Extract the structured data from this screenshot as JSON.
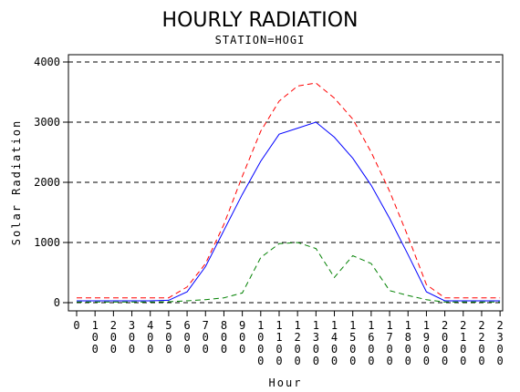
{
  "chart_data": {
    "type": "line",
    "title": "HOURLY RADIATION",
    "subtitle": "STATION=HOGI",
    "xlabel": "Hour",
    "ylabel": "Solar Radiation",
    "x": [
      "0",
      "100",
      "200",
      "300",
      "400",
      "500",
      "600",
      "700",
      "800",
      "900",
      "1000",
      "1100",
      "1200",
      "1300",
      "1400",
      "1500",
      "1600",
      "1700",
      "1800",
      "1900",
      "2000",
      "2100",
      "2200",
      "2300"
    ],
    "ylim": [
      0,
      4000
    ],
    "yticks": [
      "0",
      "1000",
      "2000",
      "3000",
      "4000"
    ],
    "grid": "horizontal dashed",
    "series": [
      {
        "color": "#ff0000",
        "dash": "dashed",
        "values": [
          80,
          80,
          80,
          80,
          80,
          80,
          260,
          650,
          1300,
          2100,
          2850,
          3350,
          3600,
          3650,
          3400,
          3050,
          2500,
          1850,
          1100,
          300,
          80,
          80,
          80,
          80
        ]
      },
      {
        "color": "#0000ff",
        "dash": "solid",
        "values": [
          30,
          30,
          30,
          30,
          30,
          40,
          180,
          600,
          1200,
          1800,
          2350,
          2800,
          2900,
          3000,
          2750,
          2400,
          1950,
          1400,
          800,
          180,
          30,
          30,
          30,
          30
        ]
      },
      {
        "color": "#008000",
        "dash": "dashed",
        "values": [
          10,
          10,
          10,
          10,
          10,
          15,
          30,
          50,
          80,
          160,
          750,
          980,
          1000,
          900,
          420,
          780,
          650,
          200,
          120,
          50,
          10,
          10,
          10,
          10
        ]
      }
    ]
  }
}
